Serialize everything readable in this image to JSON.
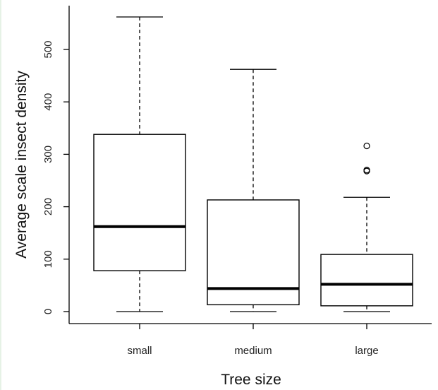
{
  "chart_data": {
    "type": "boxplot",
    "xlabel": "Tree size",
    "ylabel": "Average scale insect density",
    "categories": [
      "small",
      "medium",
      "large"
    ],
    "boxes": [
      {
        "category": "small",
        "min": 0,
        "q1": 78,
        "median": 162,
        "q3": 338,
        "max": 562,
        "outliers": []
      },
      {
        "category": "medium",
        "min": 0,
        "q1": 13,
        "median": 44,
        "q3": 213,
        "max": 462,
        "outliers": []
      },
      {
        "category": "large",
        "min": 0,
        "q1": 11,
        "median": 52,
        "q3": 109,
        "max": 218,
        "outliers": [
          268,
          270,
          316
        ]
      }
    ],
    "yticks": [
      0,
      100,
      200,
      300,
      400,
      500
    ],
    "ylim": [
      -25,
      580
    ],
    "grid": false
  }
}
